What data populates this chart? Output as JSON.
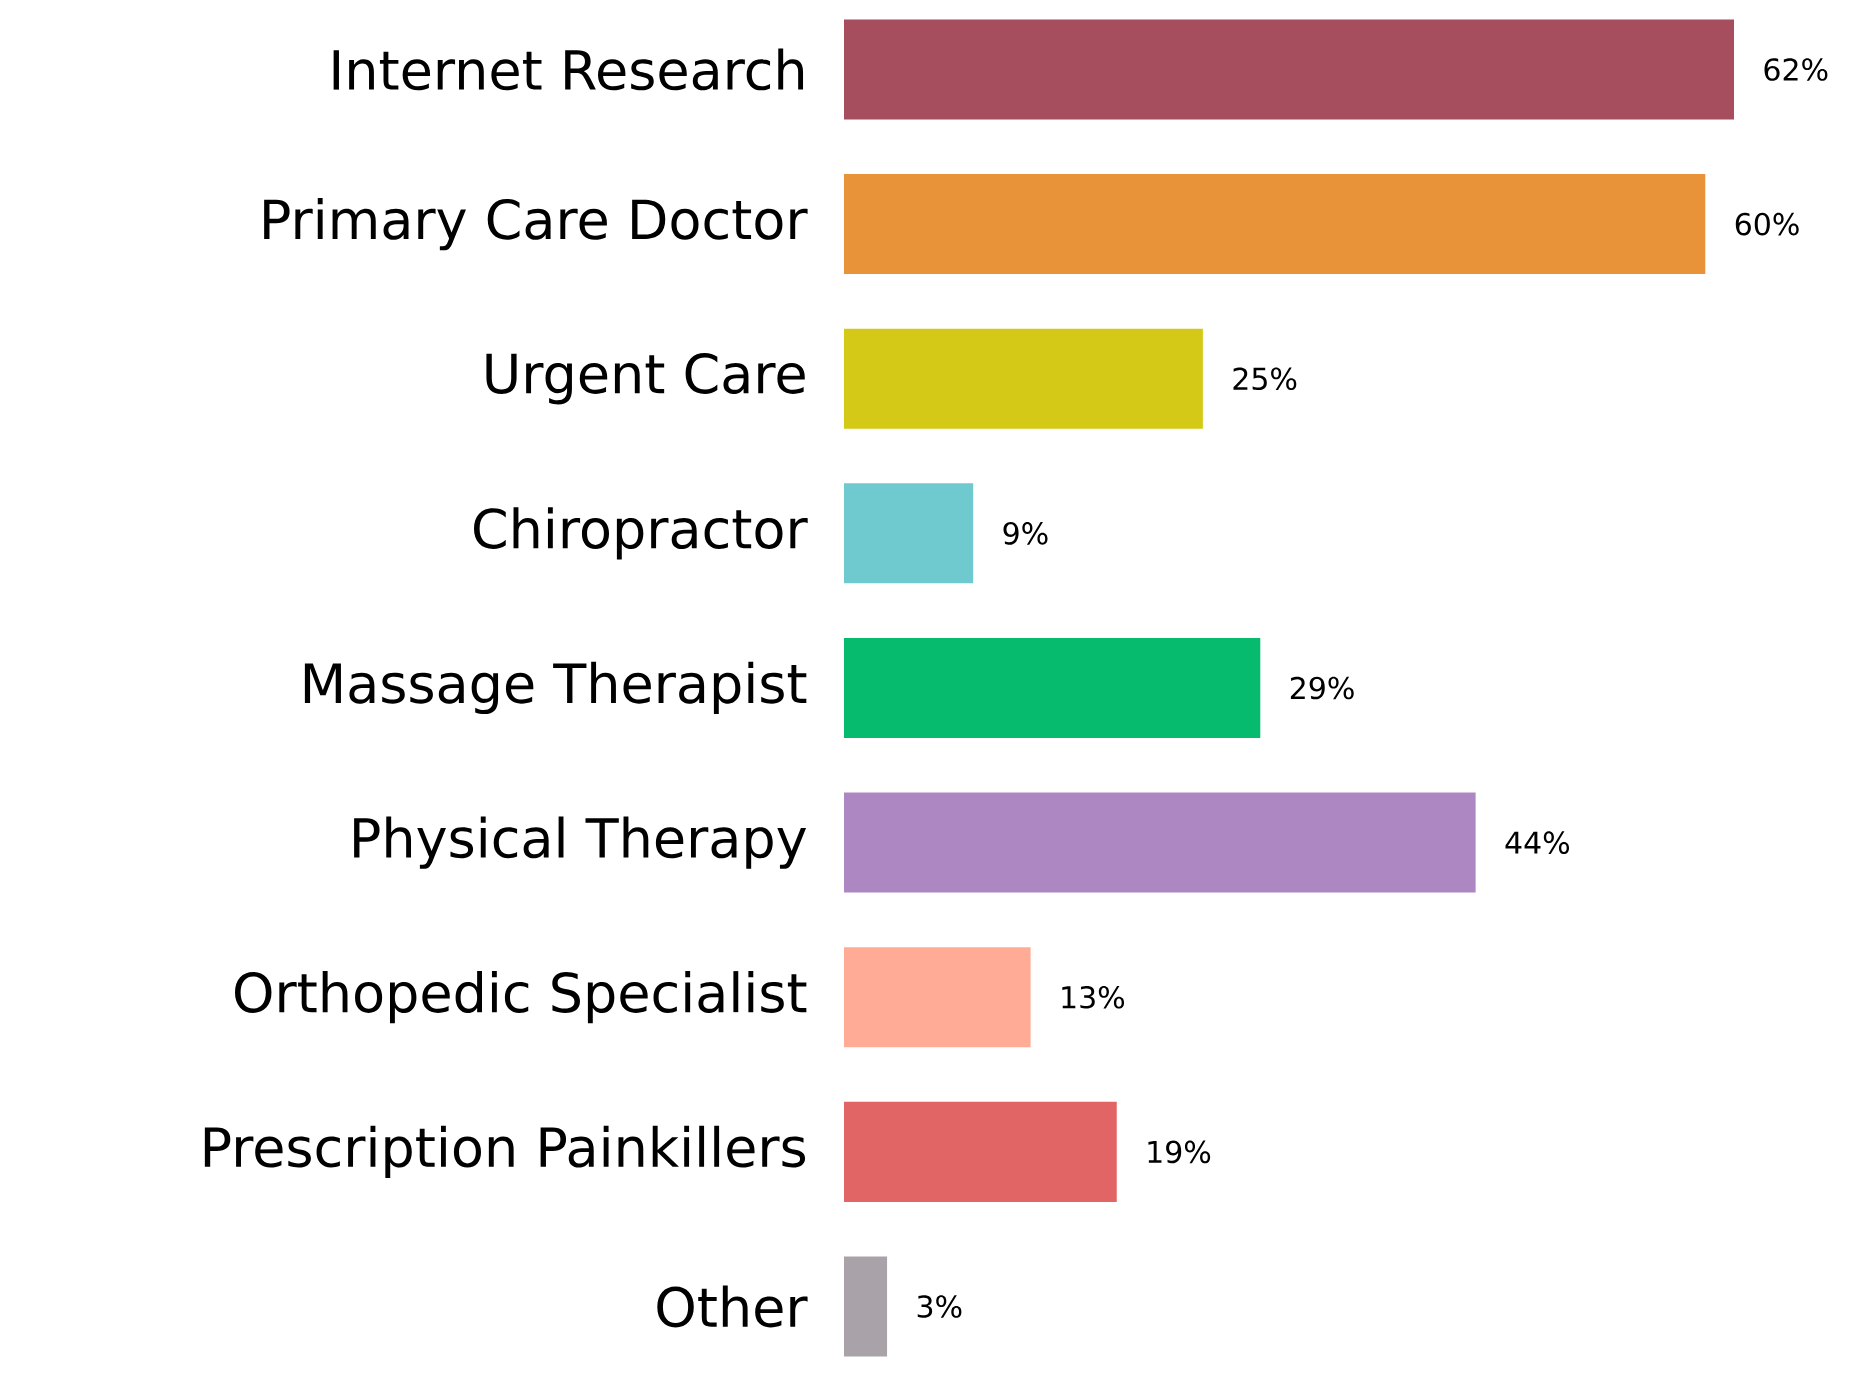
{
  "chart_data": {
    "type": "bar",
    "orientation": "horizontal",
    "categories": [
      "Internet Research",
      "Primary Care Doctor",
      "Urgent Care",
      "Chiropractor",
      "Massage Therapist",
      "Physical Therapy",
      "Orthopedic Specialist",
      "Prescription Painkillers",
      "Other"
    ],
    "values": [
      62,
      60,
      25,
      9,
      29,
      44,
      13,
      19,
      3
    ],
    "value_labels": [
      "62%",
      "60%",
      "25%",
      "9%",
      "29%",
      "44%",
      "13%",
      "19%",
      "3%"
    ],
    "colors": [
      "#a64d5e",
      "#e8923a",
      "#d4c916",
      "#6ecacf",
      "#06ba6e",
      "#ac87c2",
      "#ffab96",
      "#e26565",
      "#a9a3a9"
    ]
  }
}
